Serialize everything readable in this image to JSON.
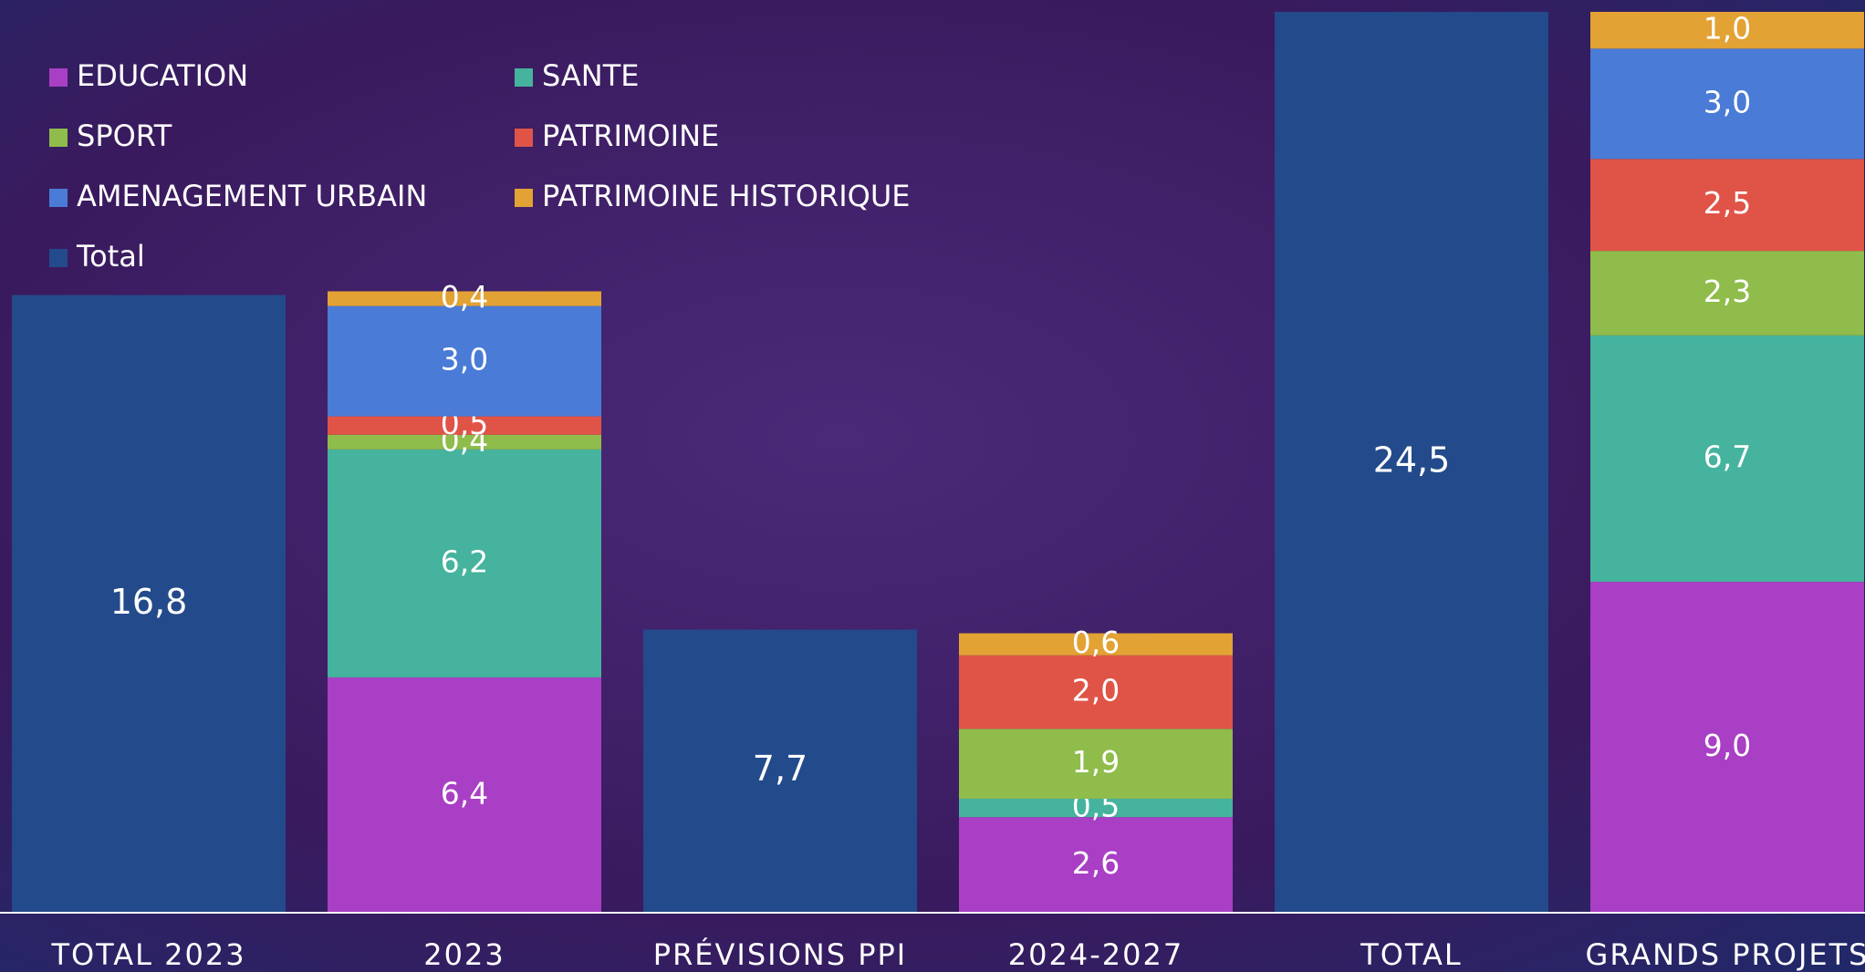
{
  "chart_data": {
    "type": "stacked_bar",
    "categories": [
      "TOTAL 2023",
      "2023",
      "PRÉVISIONS PPI",
      "2024-2027",
      "TOTAL",
      "GRANDS PROJETS"
    ],
    "series": [
      {
        "name": "EDUCATION",
        "color": "#a93fc4",
        "values": [
          null,
          6.4,
          null,
          2.6,
          null,
          9.0
        ],
        "value_labels": [
          null,
          "6,4",
          null,
          "2,6",
          null,
          "9,0"
        ]
      },
      {
        "name": "SANTE",
        "color": "#45b39d",
        "values": [
          null,
          6.2,
          null,
          0.5,
          null,
          6.7
        ],
        "value_labels": [
          null,
          "6,2",
          null,
          "0,5",
          null,
          "6,7"
        ]
      },
      {
        "name": "SPORT",
        "color": "#8fbc4b",
        "values": [
          null,
          0.4,
          null,
          1.9,
          null,
          2.3
        ],
        "value_labels": [
          null,
          "0,4",
          null,
          "1,9",
          null,
          "2,3"
        ]
      },
      {
        "name": "PATRIMOINE",
        "color": "#e05447",
        "values": [
          null,
          0.5,
          null,
          2.0,
          null,
          2.5
        ],
        "value_labels": [
          null,
          "0,5",
          null,
          "2,0",
          null,
          "2,5"
        ]
      },
      {
        "name": "AMENAGEMENT URBAIN",
        "color": "#4a7bd6",
        "values": [
          null,
          3.0,
          null,
          null,
          null,
          3.0
        ],
        "value_labels": [
          null,
          "3,0",
          null,
          null,
          null,
          "3,0"
        ]
      },
      {
        "name": "PATRIMOINE HISTORIQUE",
        "color": "#e3a234",
        "values": [
          null,
          0.4,
          null,
          0.6,
          null,
          1.0
        ],
        "value_labels": [
          null,
          "0,4",
          null,
          "0,6",
          null,
          "1,0"
        ]
      },
      {
        "name": "Total",
        "color": "#234a8a",
        "values": [
          16.8,
          null,
          7.7,
          null,
          24.5,
          null
        ],
        "value_labels": [
          "16,8",
          null,
          "7,7",
          null,
          "24,5",
          null
        ]
      }
    ],
    "legend": "top-left"
  }
}
